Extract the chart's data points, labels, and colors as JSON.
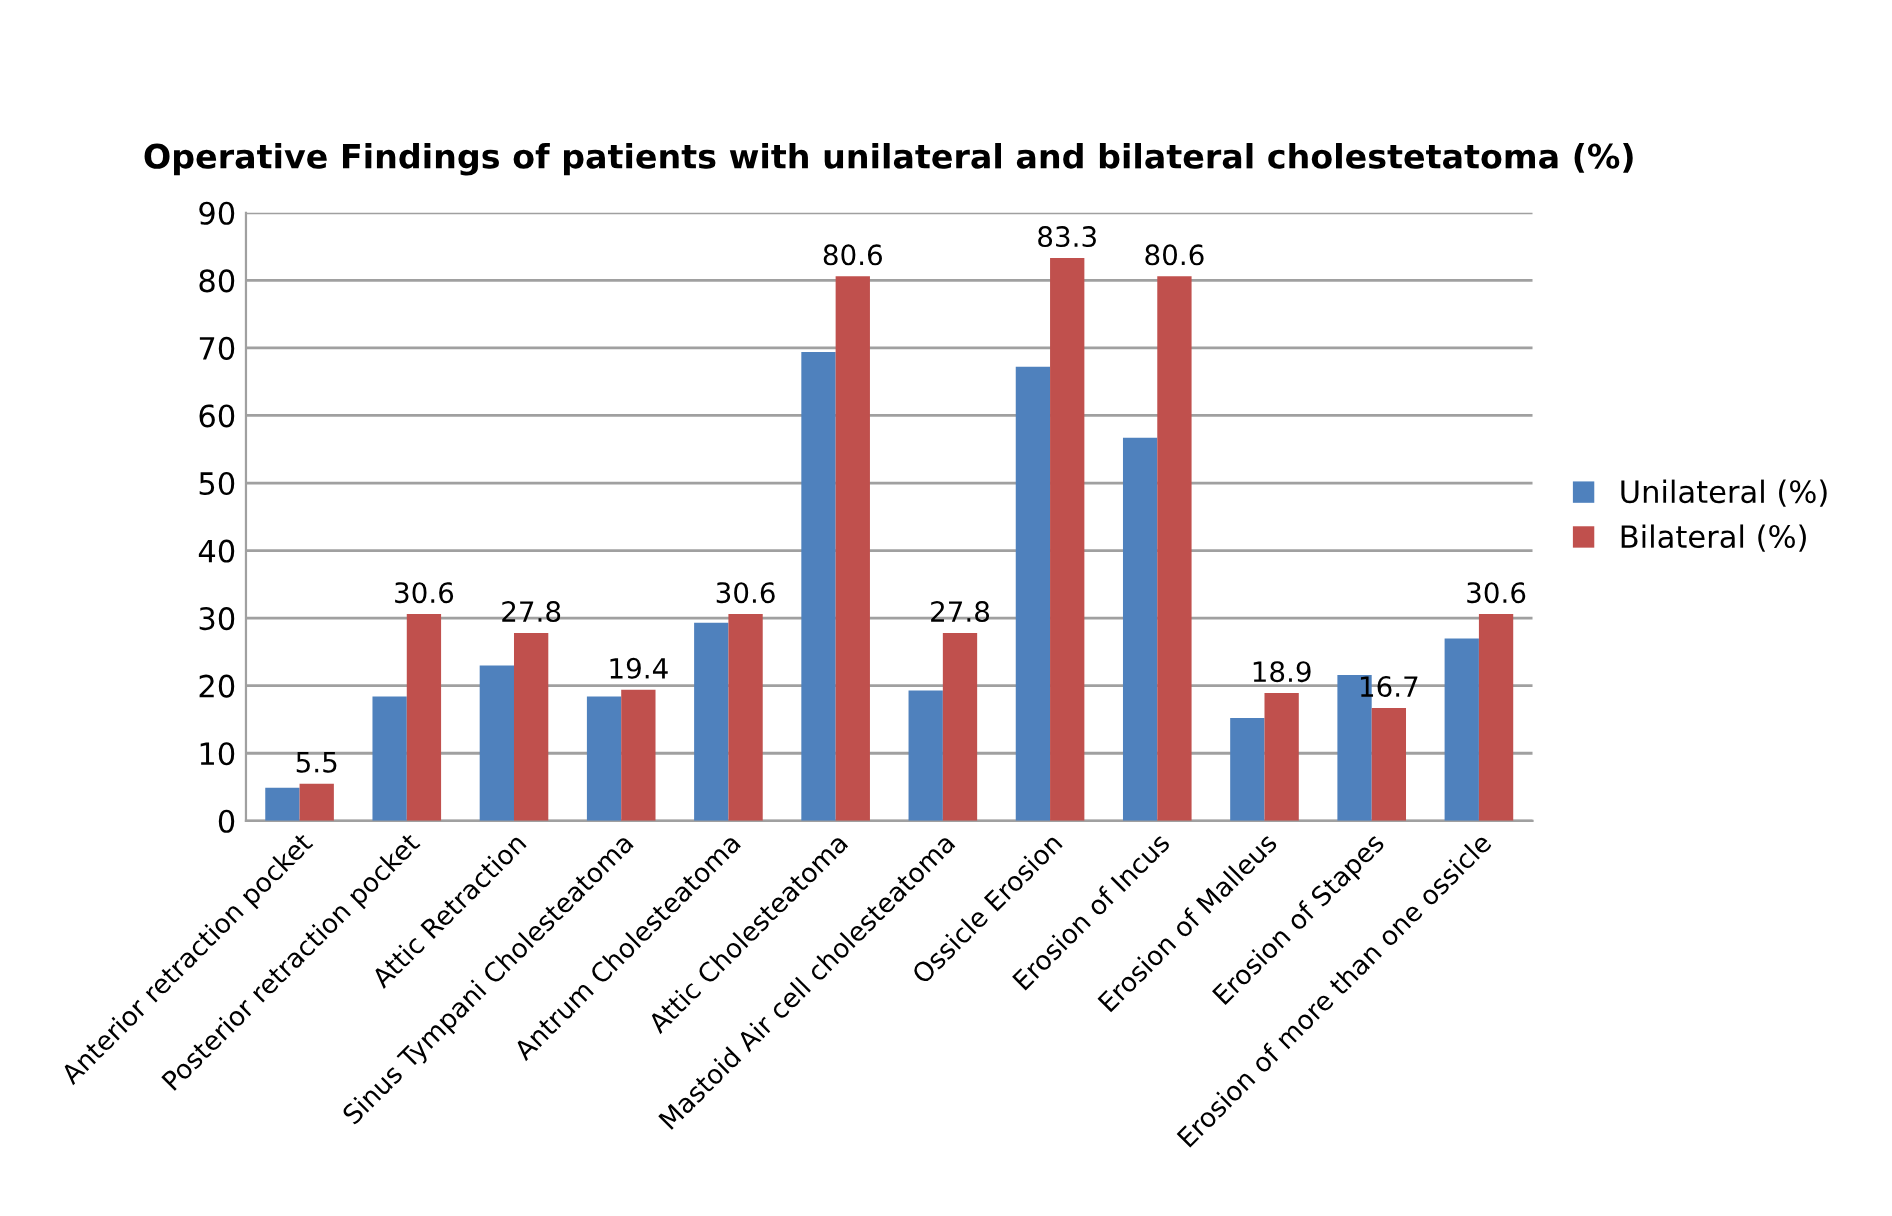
{
  "chart_data": {
    "type": "bar",
    "title": "Operative Findings of patients with unilateral and bilateral cholestetatoma (%)",
    "categories": [
      "Anterior retraction pocket",
      "Posterior retraction pocket",
      "Attic Retraction",
      "Sinus Tympani Cholesteatoma",
      "Antrum Cholesteatoma",
      "Attic Cholesteatoma",
      "Mastoid Air cell cholesteatoma",
      "Ossicle Erosion",
      "Erosion of Incus",
      "Erosion of Malleus",
      "Erosion of Stapes",
      "Erosion of more than one ossicle"
    ],
    "series": [
      {
        "name": "Unilateral (%)",
        "color": "#4f81bd",
        "values": [
          4.9,
          18.4,
          23,
          18.4,
          29.3,
          69.4,
          19.3,
          67.2,
          56.7,
          15.2,
          21.6,
          27.0
        ]
      },
      {
        "name": "Bilateral (%)",
        "color": "#c0504d",
        "values": [
          5.5,
          30.6,
          27.8,
          19.4,
          30.6,
          80.6,
          27.8,
          83.3,
          80.6,
          18.9,
          16.7,
          30.6
        ],
        "value_labels": [
          "5.5",
          "30.6",
          "27.8",
          "19.4",
          "30.6",
          "80.6",
          "27.8",
          "83.3",
          "80.6",
          "18.9",
          "16.7",
          "30.6"
        ]
      }
    ],
    "ylim": [
      0,
      90
    ],
    "yticks": [
      0,
      10,
      20,
      30,
      40,
      50,
      60,
      70,
      80,
      90
    ],
    "grid": "y",
    "legend": "right"
  }
}
